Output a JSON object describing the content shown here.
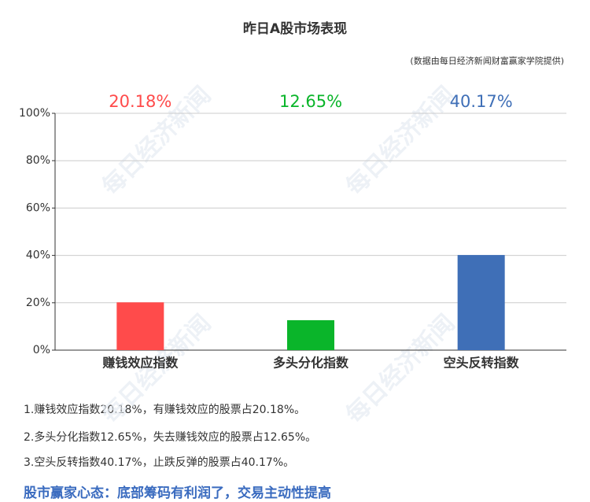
{
  "chart_data": {
    "type": "bar",
    "title": "昨日A股市场表现",
    "subtitle": "(数据由每日经济新闻财富赢家学院提供)",
    "categories": [
      "赚钱效应指数",
      "多头分化指数",
      "空头反转指数"
    ],
    "values": [
      20.18,
      12.65,
      40.17
    ],
    "value_labels": [
      "20.18%",
      "12.65%",
      "40.17%"
    ],
    "colors": [
      "#ff4b4b",
      "#0ab52a",
      "#3f6fb7"
    ],
    "ylim": [
      0,
      100
    ],
    "yticks": [
      {
        "value": 0,
        "label": "0%"
      },
      {
        "value": 20,
        "label": "20%"
      },
      {
        "value": 40,
        "label": "40%"
      },
      {
        "value": 60,
        "label": "60%"
      },
      {
        "value": 80,
        "label": "80%"
      },
      {
        "value": 100,
        "label": "100%"
      }
    ],
    "grid": true
  },
  "watermark": "每日经济新闻",
  "notes": [
    "1.赚钱效应指数20.18%，有赚钱效应的股票占20.18%。",
    "2.多头分化指数12.65%，失去赚钱效应的股票占12.65%。",
    "3.空头反转指数40.17%，止跌反弹的股票占40.17%。"
  ],
  "headline": "股市赢家心态：底部筹码有利润了，交易主动性提高"
}
